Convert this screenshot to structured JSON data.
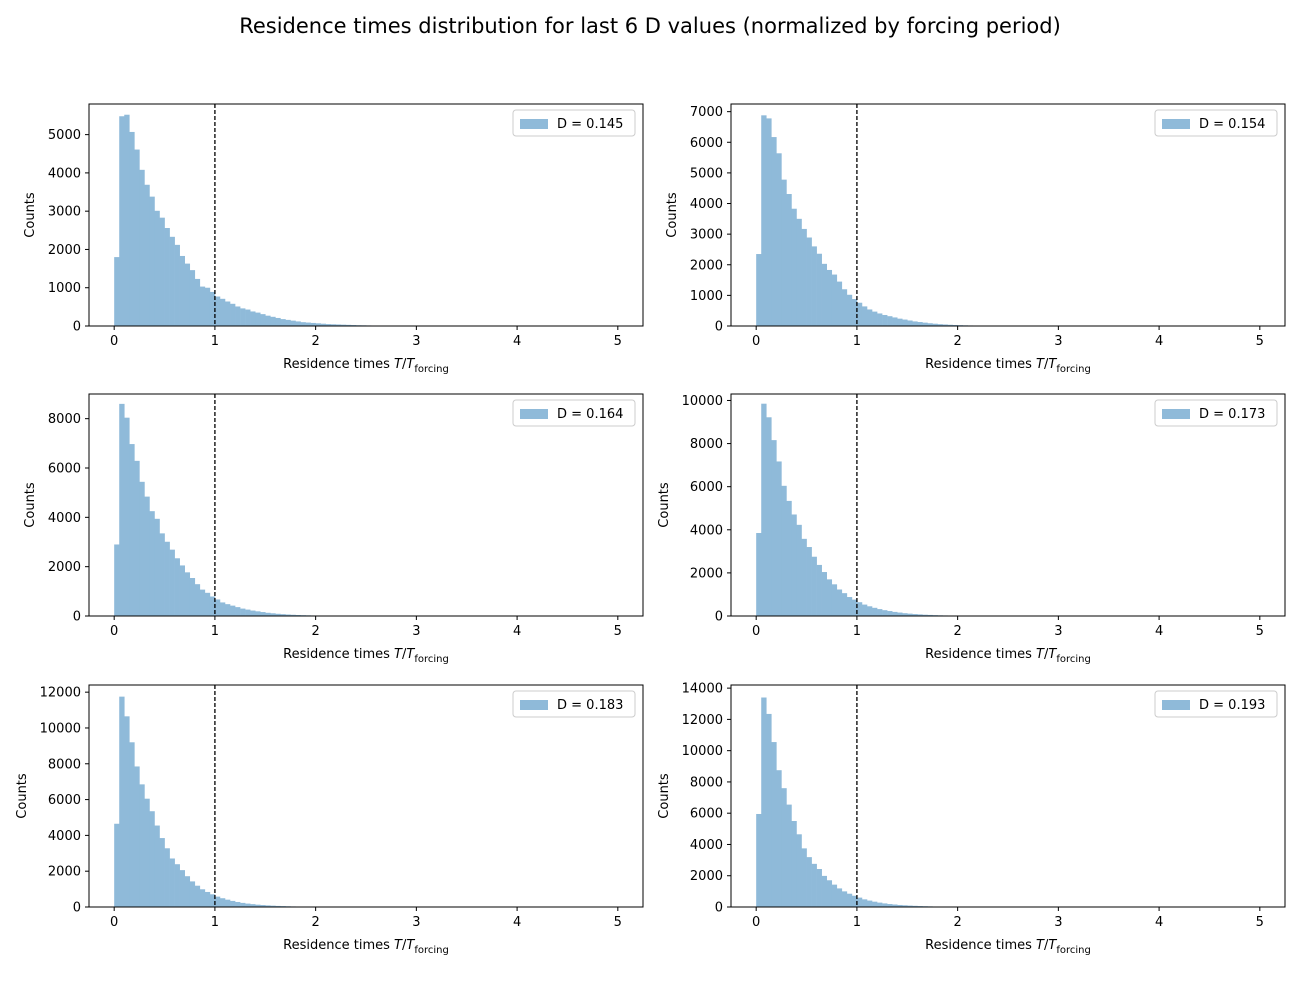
{
  "figure": {
    "title": "Residence times distribution for last 6 D values (normalized by forcing period)"
  },
  "colors": {
    "bar": "#8fbad9",
    "vline": "#000000",
    "axis": "#000000"
  },
  "chart_data": [
    {
      "type": "bar",
      "legend": "D = 0.145",
      "xlabel": "Residence times T/T_forcing",
      "ylabel": "Counts",
      "xlim": [
        -0.25,
        5.25
      ],
      "ylim": [
        0,
        5800
      ],
      "xticks": [
        0,
        1,
        2,
        3,
        4,
        5
      ],
      "yticks": [
        0,
        1000,
        2000,
        3000,
        4000,
        5000
      ],
      "vline_x": 1,
      "bin_width": 0.05,
      "bin_start": 0,
      "values": [
        1800,
        5480,
        5520,
        5070,
        4610,
        4080,
        3690,
        3380,
        3010,
        2830,
        2560,
        2330,
        2120,
        1830,
        1630,
        1460,
        1230,
        1030,
        1000,
        890,
        770,
        710,
        640,
        580,
        510,
        460,
        430,
        380,
        350,
        310,
        270,
        240,
        210,
        180,
        160,
        140,
        120,
        100,
        90,
        80,
        70,
        60,
        50,
        45,
        40,
        35,
        30,
        25,
        20,
        18,
        15,
        13,
        11,
        9,
        7,
        6,
        5,
        4,
        3,
        2
      ]
    },
    {
      "type": "bar",
      "legend": "D = 0.154",
      "xlabel": "Residence times T/T_forcing",
      "ylabel": "Counts",
      "xlim": [
        -0.25,
        5.25
      ],
      "ylim": [
        0,
        7250
      ],
      "xticks": [
        0,
        1,
        2,
        3,
        4,
        5
      ],
      "yticks": [
        0,
        1000,
        2000,
        3000,
        4000,
        5000,
        6000,
        7000
      ],
      "vline_x": 1,
      "bin_width": 0.05,
      "bin_start": 0,
      "values": [
        2350,
        6880,
        6780,
        6170,
        5640,
        4780,
        4310,
        3830,
        3500,
        3170,
        2890,
        2600,
        2360,
        2030,
        1830,
        1680,
        1450,
        1200,
        1020,
        880,
        760,
        640,
        540,
        470,
        410,
        360,
        320,
        280,
        240,
        210,
        180,
        150,
        130,
        110,
        90,
        75,
        60,
        50,
        40,
        33,
        27,
        22,
        18,
        15,
        12,
        10,
        8,
        6,
        5,
        4,
        3,
        2
      ]
    },
    {
      "type": "bar",
      "legend": "D = 0.164",
      "xlabel": "Residence times T/T_forcing",
      "ylabel": "Counts",
      "xlim": [
        -0.25,
        5.25
      ],
      "ylim": [
        0,
        9000
      ],
      "xticks": [
        0,
        1,
        2,
        3,
        4,
        5
      ],
      "yticks": [
        0,
        2000,
        4000,
        6000,
        8000
      ],
      "vline_x": 1,
      "bin_width": 0.05,
      "bin_start": 0,
      "values": [
        2900,
        8600,
        8040,
        6970,
        6290,
        5440,
        4840,
        4250,
        3940,
        3350,
        3010,
        2690,
        2340,
        2050,
        1770,
        1540,
        1290,
        1070,
        940,
        790,
        670,
        550,
        480,
        420,
        360,
        300,
        260,
        220,
        190,
        160,
        130,
        110,
        90,
        75,
        60,
        50,
        40,
        33,
        27,
        22,
        18,
        14,
        11,
        9,
        7,
        5,
        4,
        3,
        2
      ]
    },
    {
      "type": "bar",
      "legend": "D = 0.173",
      "xlabel": "Residence times T/T_forcing",
      "ylabel": "Counts",
      "xlim": [
        -0.25,
        5.25
      ],
      "ylim": [
        0,
        10300
      ],
      "xticks": [
        0,
        1,
        2,
        3,
        4,
        5
      ],
      "yticks": [
        0,
        2000,
        4000,
        6000,
        8000,
        10000
      ],
      "vline_x": 1,
      "bin_width": 0.05,
      "bin_start": 0,
      "values": [
        3850,
        9850,
        9220,
        8160,
        7170,
        6040,
        5340,
        4710,
        4230,
        3580,
        3200,
        2750,
        2370,
        2040,
        1700,
        1470,
        1230,
        1060,
        880,
        760,
        640,
        530,
        450,
        380,
        320,
        270,
        230,
        190,
        160,
        130,
        110,
        90,
        75,
        60,
        50,
        40,
        32,
        26,
        21,
        17,
        14,
        11,
        9,
        7,
        5,
        4,
        3,
        2
      ]
    },
    {
      "type": "bar",
      "legend": "D = 0.183",
      "xlabel": "Residence times T/T_forcing",
      "ylabel": "Counts",
      "xlim": [
        -0.25,
        5.25
      ],
      "ylim": [
        0,
        12400
      ],
      "xticks": [
        0,
        1,
        2,
        3,
        4,
        5
      ],
      "yticks": [
        0,
        2000,
        4000,
        6000,
        8000,
        10000,
        12000
      ],
      "vline_x": 1,
      "bin_width": 0.05,
      "bin_start": 0,
      "values": [
        4650,
        11750,
        10650,
        9200,
        7850,
        6850,
        6050,
        5350,
        4550,
        3850,
        3280,
        2710,
        2390,
        2060,
        1720,
        1430,
        1190,
        990,
        840,
        710,
        580,
        490,
        410,
        340,
        280,
        230,
        190,
        160,
        130,
        110,
        90,
        75,
        60,
        50,
        40,
        32,
        26,
        21,
        17,
        14,
        11,
        9,
        7,
        5,
        4,
        3,
        2
      ]
    },
    {
      "type": "bar",
      "legend": "D = 0.193",
      "xlabel": "Residence times T/T_forcing",
      "ylabel": "Counts",
      "xlim": [
        -0.25,
        5.25
      ],
      "ylim": [
        0,
        14200
      ],
      "xticks": [
        0,
        1,
        2,
        3,
        4,
        5
      ],
      "yticks": [
        0,
        2000,
        4000,
        6000,
        8000,
        10000,
        12000,
        14000
      ],
      "vline_x": 1,
      "bin_width": 0.05,
      "bin_start": 0,
      "values": [
        5950,
        13400,
        12350,
        10550,
        8750,
        7600,
        6550,
        5500,
        4650,
        3750,
        3190,
        2760,
        2430,
        1990,
        1710,
        1430,
        1190,
        1000,
        850,
        720,
        600,
        490,
        410,
        340,
        280,
        230,
        190,
        160,
        130,
        110,
        90,
        75,
        60,
        50,
        40,
        32,
        26,
        21,
        17,
        14,
        11,
        9,
        7,
        5,
        4,
        3,
        2
      ]
    }
  ]
}
